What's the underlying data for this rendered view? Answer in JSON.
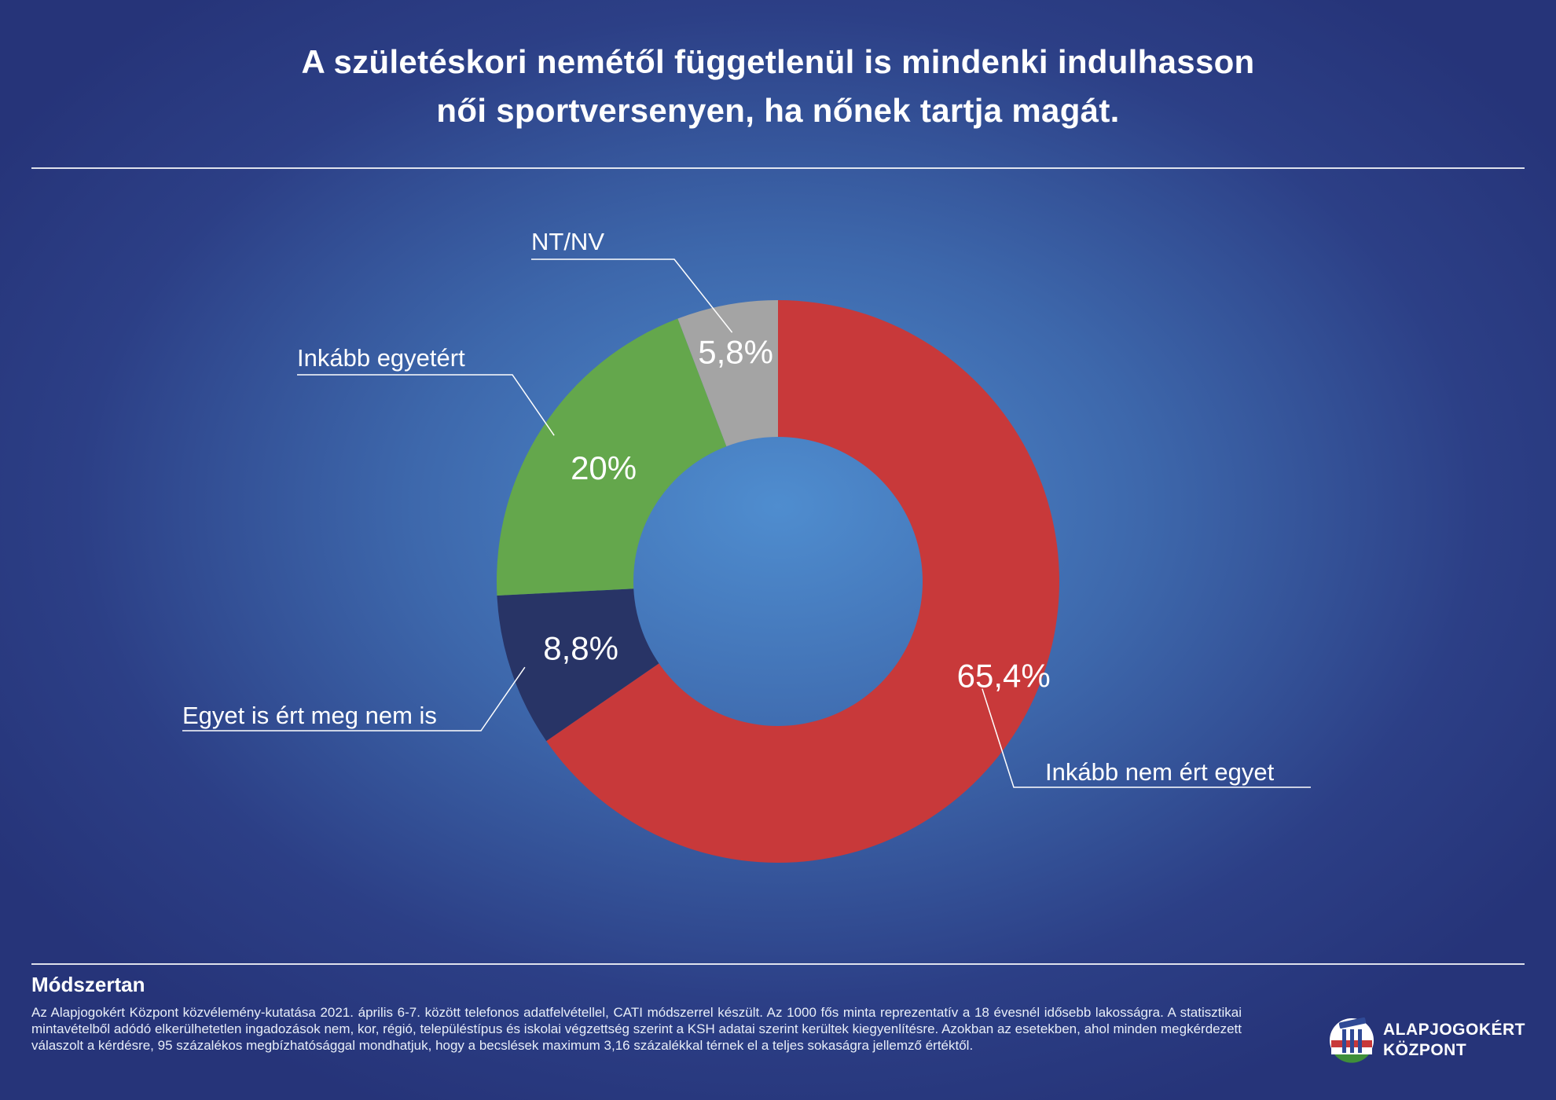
{
  "title_line1": "A születéskori nemétől függetlenül is mindenki indulhasson",
  "title_line2": "női sportversenyen, ha nőnek tartja magát.",
  "chart_data": {
    "type": "pie",
    "variant": "donut",
    "slices": [
      {
        "label": "Inkább nem ért egyet",
        "value": 65.4,
        "value_label": "65,4%",
        "color": "#c8393a"
      },
      {
        "label": "Egyet is ért meg nem is",
        "value": 8.8,
        "value_label": "8,8%",
        "color": "#283466"
      },
      {
        "label": "Inkább egyetért",
        "value": 20,
        "value_label": "20%",
        "color": "#64a74c"
      },
      {
        "label": "NT/NV",
        "value": 5.8,
        "value_label": "5,8%",
        "color": "#a4a4a4"
      }
    ]
  },
  "methodology": {
    "heading": "Módszertan",
    "text": "Az Alapjogokért Központ közvélemény-kutatása 2021. április 6-7. között telefonos adatfelvétellel, CATI módszerrel készült. Az 1000 fős minta reprezentatív a 18 évesnél idősebb lakosságra. A statisztikai mintavételből adódó elkerülhetetlen ingadozások nem, kor, régió, településtípus és iskolai végzettség szerint a KSH adatai szerint kerültek kiegyenlítésre. Azokban az esetekben, ahol minden megkérdezett válaszolt a kérdésre, 95 százalékos megbízhatósággal mondhatjuk, hogy a becslések maximum 3,16 százalékkal térnek el a teljes sokaságra jellemző értéktől."
  },
  "logo": {
    "line1": "ALAPJOGOKÉRT",
    "line2": "KÖZPONT",
    "icon": "pillar-flag-icon"
  }
}
